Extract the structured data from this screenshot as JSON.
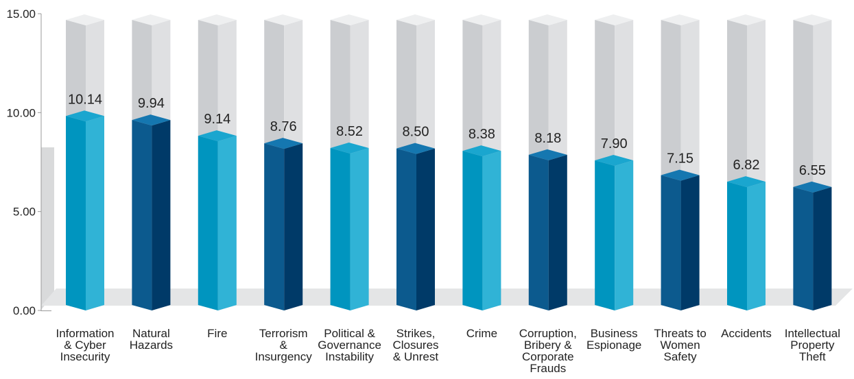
{
  "chart_data": {
    "type": "bar",
    "categories": [
      "Information & Cyber Insecurity",
      "Natural Hazards",
      "Fire",
      "Terrorism & Insurgency",
      "Political & Governance Instability",
      "Strikes, Closures & Unrest",
      "Crime",
      "Corruption, Bribery & Corporate Frauds",
      "Business Espionage",
      "Threats to Women Safety",
      "Accidents",
      "Intellectual Property Theft"
    ],
    "category_lines": [
      [
        "Information",
        "& Cyber",
        "Insecurity"
      ],
      [
        "Natural",
        "Hazards"
      ],
      [
        "Fire"
      ],
      [
        "Terrorism",
        "&",
        "Insurgency"
      ],
      [
        "Political &",
        "Governance",
        "Instability"
      ],
      [
        "Strikes,",
        "Closures",
        "& Unrest"
      ],
      [
        "Crime"
      ],
      [
        "Corruption,",
        "Bribery &",
        "Corporate",
        "Frauds"
      ],
      [
        "Business",
        "Espionage"
      ],
      [
        "Threats to",
        "Women",
        "Safety"
      ],
      [
        "Accidents"
      ],
      [
        "Intellectual",
        "Property",
        "Theft"
      ]
    ],
    "values": [
      10.14,
      9.94,
      9.14,
      8.76,
      8.52,
      8.5,
      8.38,
      8.18,
      7.9,
      7.15,
      6.82,
      6.55
    ],
    "value_labels": [
      "10.14",
      "9.94",
      "9.14",
      "8.76",
      "8.52",
      "8.50",
      "8.38",
      "8.18",
      "7.90",
      "7.15",
      "6.82",
      "6.55"
    ],
    "bar_styles": [
      "light",
      "dark",
      "light",
      "dark",
      "light",
      "dark",
      "light",
      "dark",
      "light",
      "dark",
      "light",
      "dark"
    ],
    "ylim": [
      0,
      15
    ],
    "yticks": [
      0,
      5,
      10,
      15
    ],
    "ytick_labels": [
      "0.00",
      "5.00",
      "10.00",
      "15.00"
    ],
    "title": "",
    "xlabel": "",
    "ylabel": "",
    "grid": false,
    "colors": {
      "light_front": "#0095bf",
      "light_side": "#30b3d6",
      "light_top": "#1aa6cf",
      "dark_front": "#0c5a8e",
      "dark_side": "#003a68",
      "dark_top": "#1577b0",
      "ghost_front": "#cbcdd0",
      "ghost_side": "#dfe0e2",
      "ghost_top": "#eeeff0",
      "floor": "#e4e5e6",
      "wall": "#d9dadb",
      "axis": "#999999"
    }
  }
}
